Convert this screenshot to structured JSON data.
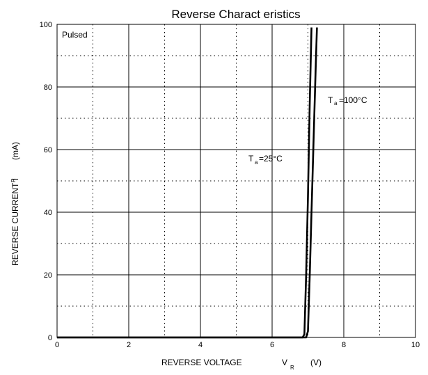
{
  "chart_data": {
    "type": "line",
    "title": "Reverse   Charact eristics",
    "xlabel": {
      "text": "REVERSE VOLTAGE",
      "symbol": "V",
      "subscript": "R",
      "unit": "(V)"
    },
    "ylabel": {
      "text": "REVERSE CURRENT   I",
      "subscript": "R",
      "unit": "(mA)"
    },
    "xlim": [
      0,
      10
    ],
    "ylim": [
      0,
      100
    ],
    "xticks": [
      0,
      2,
      4,
      6,
      8,
      10
    ],
    "yticks": [
      0,
      20,
      40,
      60,
      80,
      100
    ],
    "grid": "solid major lines, dotted minor lines",
    "note": "Pulsed",
    "series": [
      {
        "name": "Ta=25°C",
        "annotation": {
          "T": "T",
          "sub": "a",
          "rest": "=25°C"
        },
        "x": [
          0,
          6.85,
          6.9,
          6.95,
          7.0,
          7.05,
          7.1
        ],
        "y": [
          0,
          0,
          1,
          20,
          45,
          75,
          99
        ]
      },
      {
        "name": "Ta=100°C",
        "annotation": {
          "T": "T",
          "sub": "a",
          "rest": "=100°C"
        },
        "x": [
          0,
          6.95,
          7.0,
          7.05,
          7.1,
          7.15,
          7.2,
          7.25
        ],
        "y": [
          0,
          0,
          2,
          20,
          40,
          60,
          80,
          99
        ]
      }
    ]
  }
}
